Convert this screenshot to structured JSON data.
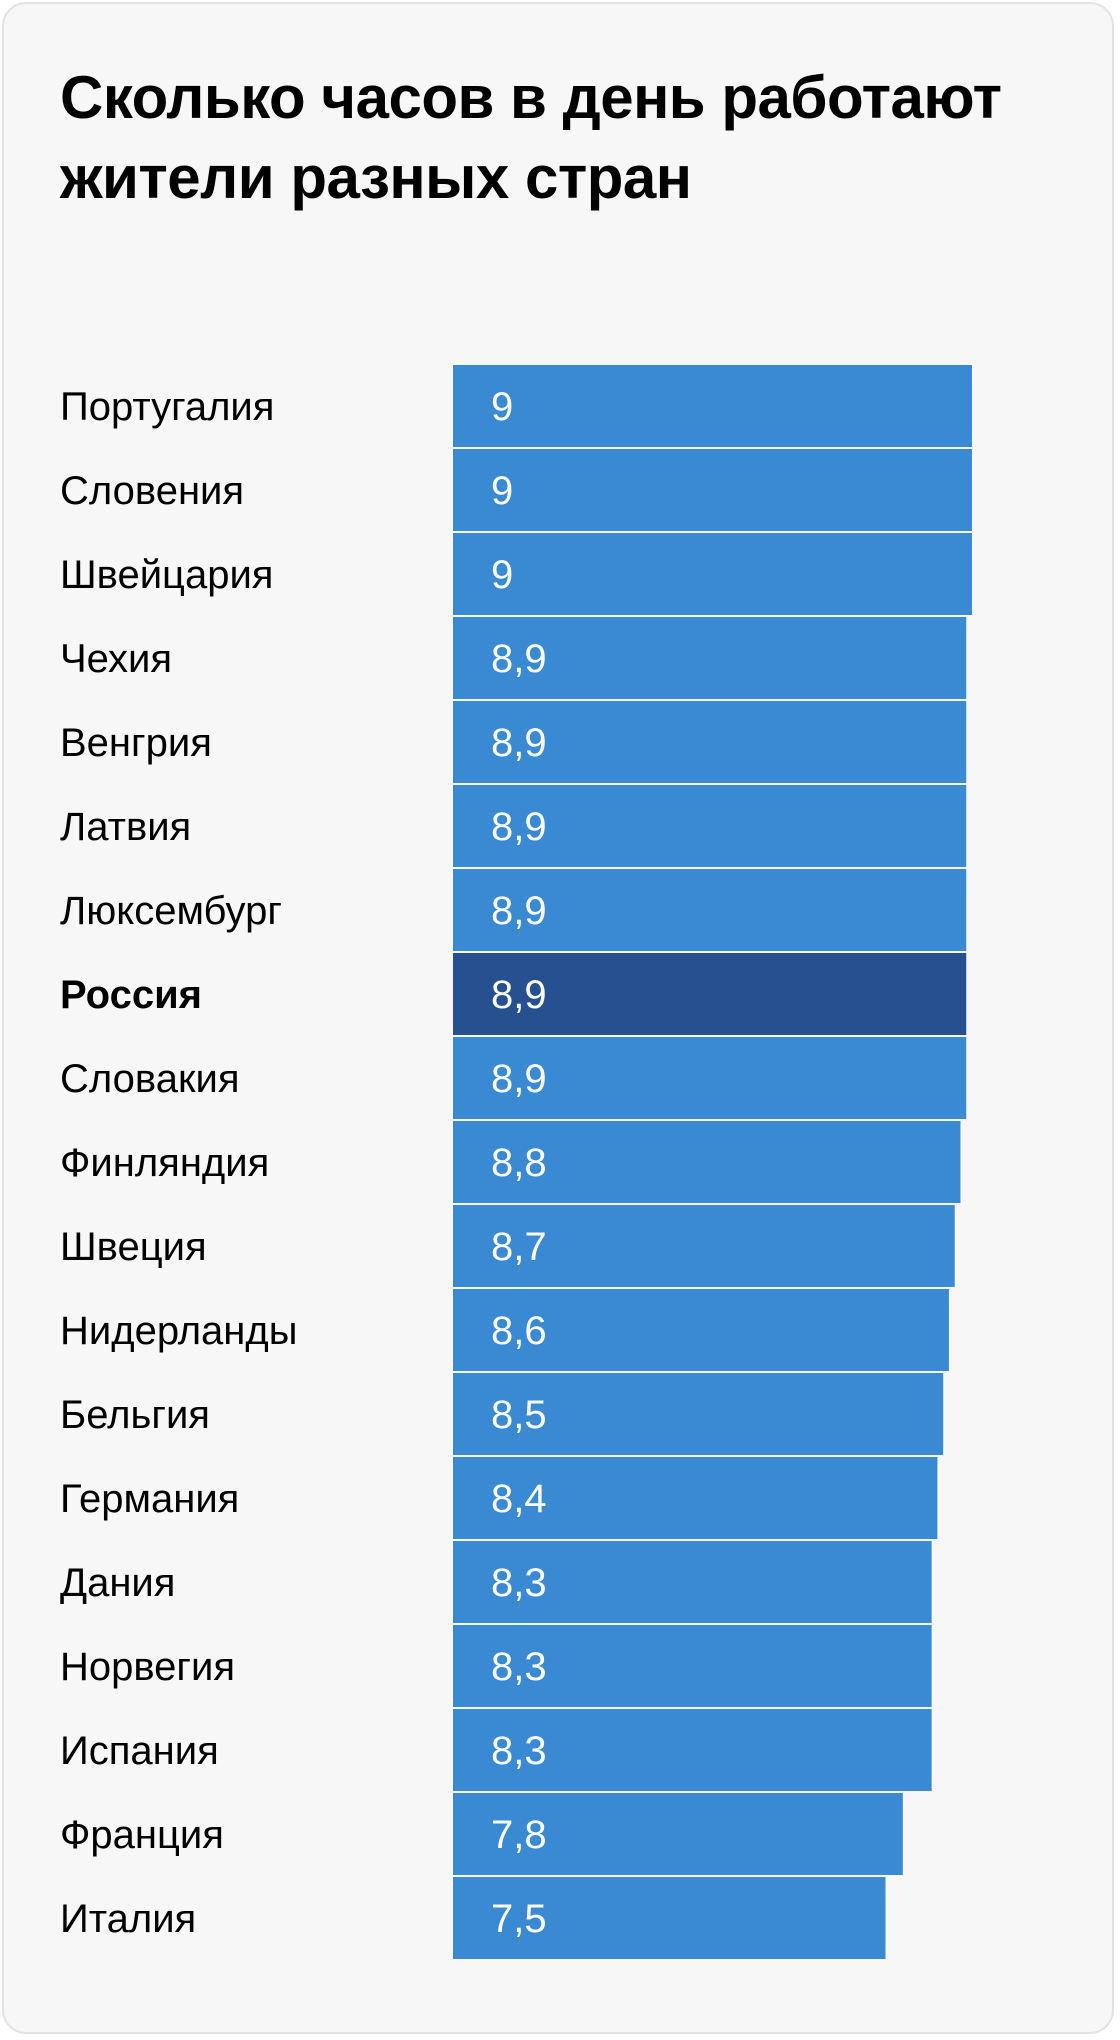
{
  "chart_data": {
    "type": "bar",
    "orientation": "horizontal",
    "title": "Сколько часов в день работают жители разных стран",
    "categories": [
      "Португалия",
      "Словения",
      "Швейцария",
      "Чехия",
      "Венгрия",
      "Латвия",
      "Люксембург",
      "Россия",
      "Словакия",
      "Финляндия",
      "Швеция",
      "Нидерланды",
      "Бельгия",
      "Германия",
      "Дания",
      "Норвегия",
      "Испания",
      "Франция",
      "Италия"
    ],
    "values": [
      9,
      9,
      9,
      8.9,
      8.9,
      8.9,
      8.9,
      8.9,
      8.9,
      8.8,
      8.7,
      8.6,
      8.5,
      8.4,
      8.3,
      8.3,
      8.3,
      7.8,
      7.5
    ],
    "value_labels": [
      "9",
      "9",
      "9",
      "8,9",
      "8,9",
      "8,9",
      "8,9",
      "8,9",
      "8,9",
      "8,8",
      "8,7",
      "8,6",
      "8,5",
      "8,4",
      "8,3",
      "8,3",
      "8,3",
      "7,8",
      "7,5"
    ],
    "highlight": "Россия",
    "xlim": [
      0,
      9
    ],
    "grid": false,
    "legend": "none",
    "colors": {
      "bar": "#3a89d3",
      "highlight_bar": "#26508f",
      "background": "#f7f7f8"
    }
  }
}
